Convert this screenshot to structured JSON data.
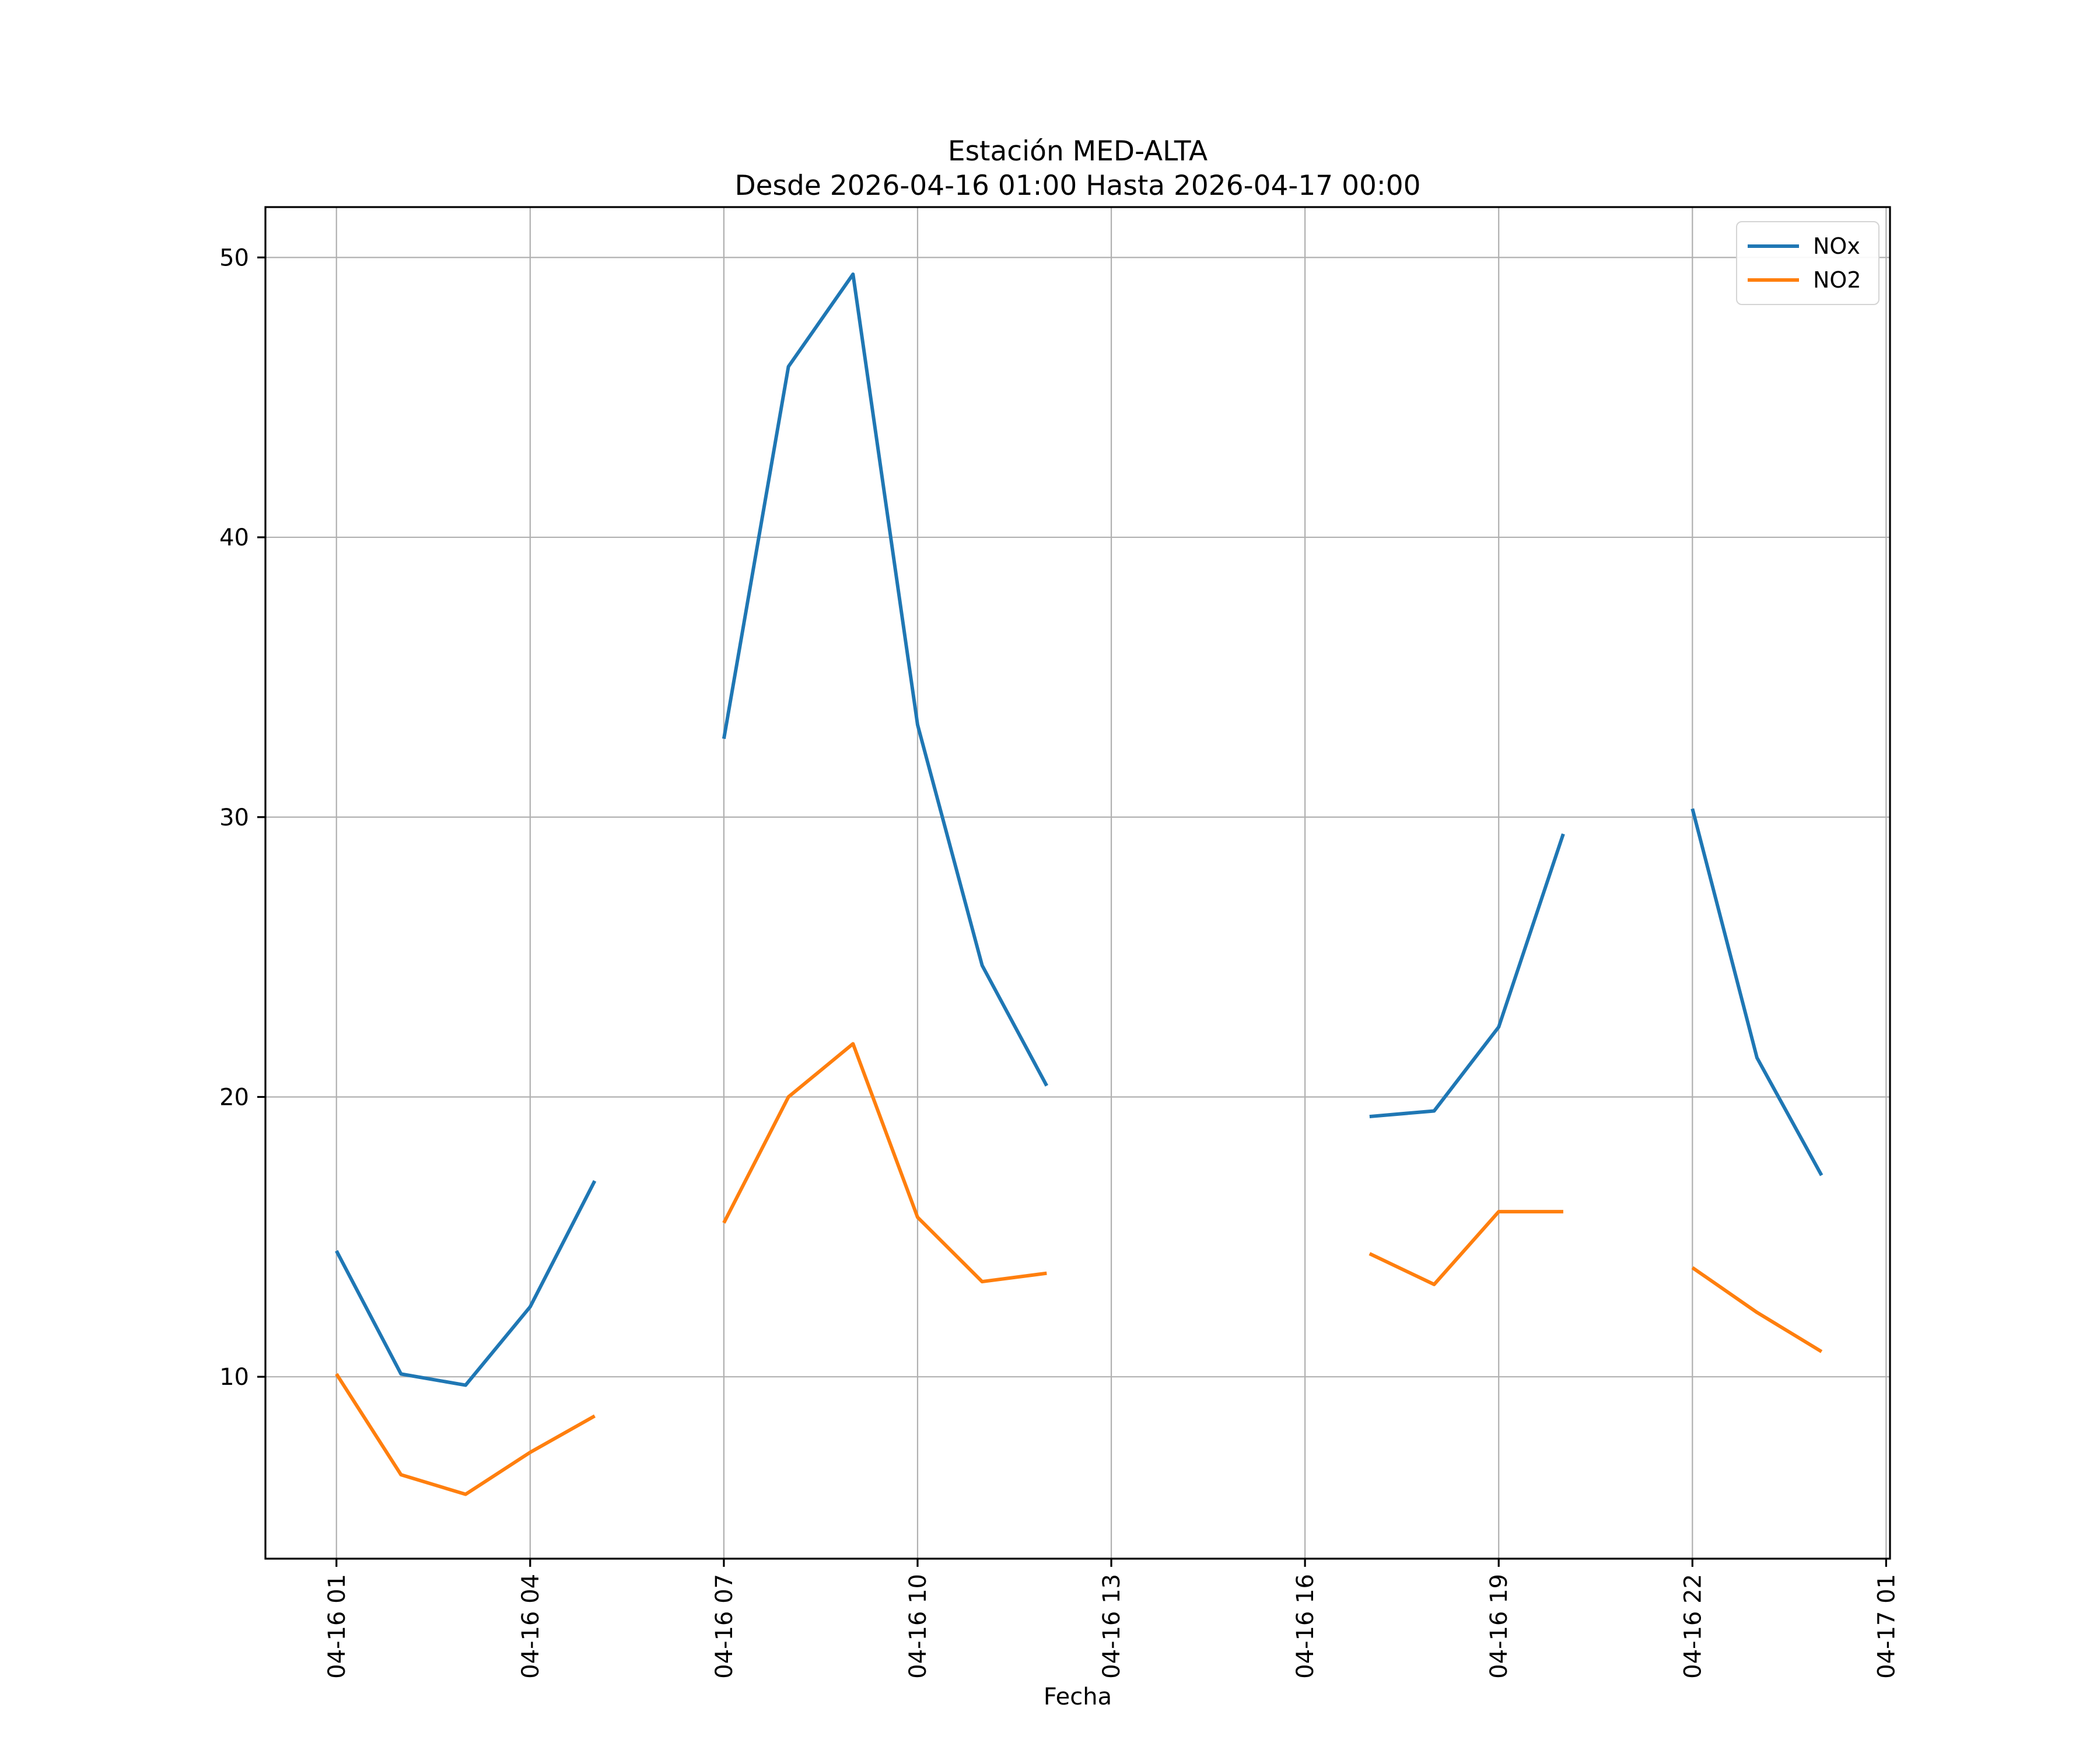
{
  "chart_data": {
    "type": "line",
    "title": "Estación MED-ALTA",
    "subtitle": "Desde 2026-04-16 01:00 Hasta 2026-04-17 00:00",
    "xlabel": "Fecha",
    "ylabel": "",
    "grid": true,
    "legend_position": "upper right",
    "background_color": "#ffffff",
    "grid_color": "#b0b0b0",
    "spine_color": "#000000",
    "x_tick_labels": [
      "04-16 01",
      "04-16 04",
      "04-16 07",
      "04-16 10",
      "04-16 13",
      "04-16 16",
      "04-16 19",
      "04-16 22",
      "04-17 01"
    ],
    "x_tick_hours": [
      1,
      4,
      7,
      10,
      13,
      16,
      19,
      22,
      25
    ],
    "y_ticks": [
      10,
      20,
      30,
      40,
      50
    ],
    "xlim": [
      -0.1,
      25.06
    ],
    "ylim": [
      3.5,
      51.8
    ],
    "x_hours": [
      1,
      2,
      3,
      4,
      5,
      6,
      7,
      8,
      9,
      10,
      11,
      12,
      13,
      14,
      15,
      16,
      17,
      18,
      19,
      20,
      21,
      22,
      23,
      24
    ],
    "series": [
      {
        "name": "NOx",
        "color": "#1f77b4",
        "values": [
          14.5,
          10.1,
          9.7,
          12.5,
          17.0,
          null,
          32.8,
          46.1,
          49.4,
          33.3,
          24.7,
          20.4,
          null,
          null,
          null,
          null,
          19.3,
          19.5,
          22.5,
          29.4,
          null,
          30.3,
          21.4,
          17.2
        ]
      },
      {
        "name": "NO2",
        "color": "#ff7f0e",
        "values": [
          10.1,
          6.5,
          5.8,
          7.3,
          8.6,
          null,
          15.5,
          20.0,
          21.9,
          15.7,
          13.4,
          13.7,
          null,
          null,
          null,
          null,
          14.4,
          13.3,
          15.9,
          15.9,
          null,
          13.9,
          12.3,
          10.9
        ]
      }
    ]
  },
  "legend": {
    "items": [
      {
        "label": "NOx",
        "color": "#1f77b4"
      },
      {
        "label": "NO2",
        "color": "#ff7f0e"
      }
    ]
  }
}
